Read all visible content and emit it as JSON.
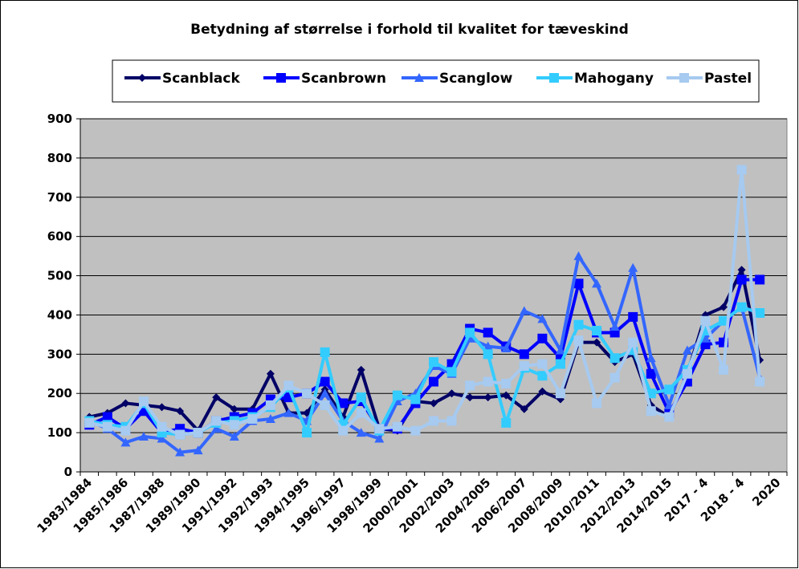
{
  "chart_data": {
    "type": "line",
    "title": "Betydning af størrelse i forhold til kvalitet for tæveskind",
    "categories": [
      "1983/1984",
      null,
      "1985/1986",
      null,
      "1987/1988",
      null,
      "1989/1990",
      null,
      "1991/1992",
      null,
      "1992/1993",
      null,
      "1994/1995",
      null,
      "1996/1997",
      null,
      "1998/1999",
      null,
      "2000/2001",
      null,
      "2002/2003",
      null,
      "2004/2005",
      null,
      "2006/2007",
      null,
      "2008/2009",
      null,
      "2010/2011",
      null,
      "2012/2013",
      null,
      "2014/2015",
      null,
      "2017 - 4",
      null,
      "2018 - 4",
      null,
      "2020"
    ],
    "series": [
      {
        "name": "Scanblack",
        "color": "#000066",
        "marker": "diamond",
        "values": [
          140,
          150,
          175,
          170,
          165,
          155,
          105,
          190,
          160,
          160,
          250,
          150,
          150,
          210,
          140,
          260,
          110,
          105,
          180,
          175,
          200,
          190,
          190,
          195,
          160,
          205,
          185,
          330,
          330,
          280,
          300,
          170,
          140,
          250,
          400,
          420,
          515,
          285,
          null
        ]
      },
      {
        "name": "Scanbrown",
        "color": "#0000ff",
        "marker": "square",
        "values": [
          120,
          140,
          110,
          155,
          100,
          110,
          100,
          130,
          140,
          150,
          185,
          190,
          200,
          230,
          175,
          180,
          110,
          110,
          175,
          230,
          275,
          365,
          355,
          320,
          300,
          340,
          290,
          480,
          355,
          355,
          395,
          250,
          150,
          230,
          325,
          330,
          490,
          490,
          null
        ]
      },
      {
        "name": "Scanglow",
        "color": "#3366ff",
        "marker": "triangle",
        "values": [
          130,
          110,
          75,
          90,
          85,
          50,
          55,
          110,
          90,
          130,
          135,
          150,
          130,
          200,
          130,
          100,
          85,
          180,
          200,
          270,
          250,
          340,
          320,
          315,
          410,
          390,
          310,
          550,
          480,
          370,
          520,
          290,
          170,
          310,
          340,
          385,
          420,
          240,
          null
        ]
      },
      {
        "name": "Mahogany",
        "color": "#33ccff",
        "marker": "square",
        "values": [
          130,
          120,
          115,
          175,
          100,
          95,
          100,
          125,
          130,
          140,
          165,
          215,
          100,
          305,
          120,
          190,
          105,
          195,
          185,
          280,
          255,
          355,
          300,
          125,
          265,
          245,
          275,
          375,
          360,
          290,
          310,
          200,
          210,
          260,
          360,
          385,
          420,
          405,
          null
        ]
      },
      {
        "name": "Pastel",
        "color": "#a6caf0",
        "marker": "square",
        "values": [
          125,
          115,
          105,
          180,
          115,
          95,
          100,
          130,
          120,
          135,
          170,
          220,
          200,
          170,
          105,
          150,
          110,
          115,
          105,
          130,
          130,
          220,
          230,
          225,
          270,
          275,
          200,
          335,
          175,
          240,
          330,
          155,
          140,
          250,
          385,
          260,
          770,
          230,
          null
        ]
      }
    ],
    "ylim": [
      0,
      900
    ],
    "yticks": [
      0,
      100,
      200,
      300,
      400,
      500,
      600,
      700,
      800,
      900
    ],
    "grid": true,
    "legend": "top",
    "plot_background": "#c0c0c0"
  }
}
